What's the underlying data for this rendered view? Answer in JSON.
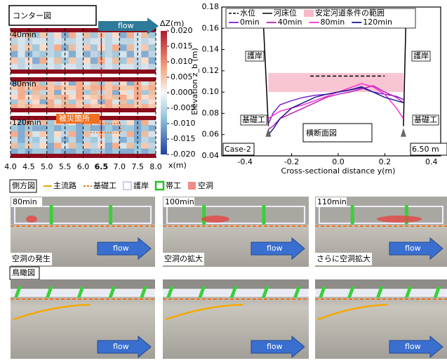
{
  "chart_data": [
    {
      "type": "heatmap",
      "title": "コンター図",
      "flow_label": "flow",
      "panels": [
        "40min",
        "80min",
        "120min"
      ],
      "annotation": "被災箇所",
      "x_label": "x(m)",
      "xlim": [
        4.0,
        8.0
      ],
      "xticks": [
        {
          "value": 4,
          "label": "4.0"
        },
        4.5,
        {
          "value": 5,
          "label": "5.0"
        },
        5.5,
        {
          "value": 6,
          "label": "6.0"
        },
        6.5,
        {
          "value": 7,
          "label": "7.0"
        },
        7.5,
        {
          "value": 8,
          "label": "8.0"
        }
      ],
      "highlight_x": 6.5,
      "colorbar_label": "ΔZ(m)",
      "clim": [
        -0.02,
        0.02
      ],
      "cticks": [
        {
          "value": 0.02,
          "label": "0.020"
        },
        {
          "value": 0.015,
          "label": "0.015"
        },
        {
          "value": 0.01,
          "label": "0.010"
        },
        {
          "value": 0.005,
          "label": "0.005"
        },
        {
          "value": 0,
          "label": "0.000"
        },
        {
          "value": -0.005,
          "label": "-0.005"
        },
        {
          "value": -0.01,
          "label": "-0.010"
        },
        {
          "value": -0.015,
          "label": "-0.015"
        },
        {
          "value": -0.02,
          "label": "-0.020"
        }
      ]
    },
    {
      "type": "line",
      "title": "横断面図",
      "case_label": "Case-2",
      "position_label": "6.50 m",
      "x_label": "Cross-sectional distance y(m)",
      "y_label": "Elevation z_b (m)",
      "xlim": [
        -0.5,
        0.44
      ],
      "ylim": [
        0.04,
        0.18
      ],
      "xticks": [
        -0.4,
        -0.2,
        {
          "value": 0,
          "label": "0.0"
        },
        0.2,
        0.4
      ],
      "yticks": [
        0.04,
        0.06,
        0.08,
        {
          "value": 0.1,
          "label": "0.10"
        },
        0.12,
        0.14,
        0.16,
        0.18
      ],
      "annotations": [
        "護岸",
        "護岸",
        "基礎工",
        "基礎工"
      ],
      "stable_range": {
        "name": "安定河道条件の範囲",
        "color": "#f6b8c8",
        "x": [
          -0.3,
          0.28
        ],
        "low": 0.1,
        "high": 0.118
      },
      "reference": [
        {
          "name": "水位",
          "color": "#000000",
          "style": "dashed",
          "x": [
            -0.12,
            0.2
          ],
          "values": [
            0.115,
            0.115
          ]
        },
        {
          "name": "河床位",
          "color": "#000000",
          "style": "solid",
          "x": [
            -0.32,
            -0.3
          ],
          "values": [
            0.16,
            0.068
          ],
          "x2": [
            0.29,
            0.28
          ],
          "values2": [
            0.16,
            0.068
          ]
        }
      ],
      "x": [
        -0.3,
        -0.28,
        -0.25,
        -0.2,
        -0.15,
        -0.1,
        -0.05,
        0,
        0.05,
        0.1,
        0.15,
        0.2,
        0.25,
        0.28
      ],
      "series": [
        {
          "name": "0min",
          "color": "#7a1fd0",
          "values": [
            0.07,
            0.08,
            0.088,
            0.092,
            0.095,
            0.097,
            0.098,
            0.1,
            0.102,
            0.104,
            0.1,
            0.098,
            0.096,
            0.093
          ]
        },
        {
          "name": "40min",
          "color": "#c01fb8",
          "values": [
            0.065,
            0.068,
            0.075,
            0.08,
            0.085,
            0.09,
            0.095,
            0.098,
            0.1,
            0.103,
            0.106,
            0.1,
            0.095,
            0.09
          ]
        },
        {
          "name": "80min",
          "color": "#ff2ad8",
          "values": [
            0.075,
            0.078,
            0.082,
            0.085,
            0.088,
            0.092,
            0.096,
            0.1,
            0.104,
            0.108,
            0.105,
            0.098,
            0.085,
            0.075
          ]
        },
        {
          "name": "120min",
          "color": "#1a1a8a",
          "values": [
            0.06,
            0.065,
            0.075,
            0.085,
            0.09,
            0.095,
            0.098,
            0.1,
            0.102,
            0.105,
            0.1,
            0.095,
            0.092,
            0.09
          ]
        }
      ]
    }
  ],
  "side_view": {
    "title": "側方図",
    "legend": [
      "主流路",
      "基礎工",
      "護岸",
      "帯工",
      "空洞"
    ],
    "photos": [
      {
        "time": "80min",
        "caption": "空洞の発生",
        "flow": "flow"
      },
      {
        "time": "100min",
        "caption": "空洞の拡大",
        "flow": "flow"
      },
      {
        "time": "110min",
        "caption": "さらに空洞拡大",
        "flow": "flow"
      }
    ]
  },
  "birds_eye": {
    "title": "鳥瞰図",
    "photos": [
      {
        "flow": "flow"
      },
      {
        "flow": "flow"
      },
      {
        "flow": "flow"
      }
    ]
  }
}
